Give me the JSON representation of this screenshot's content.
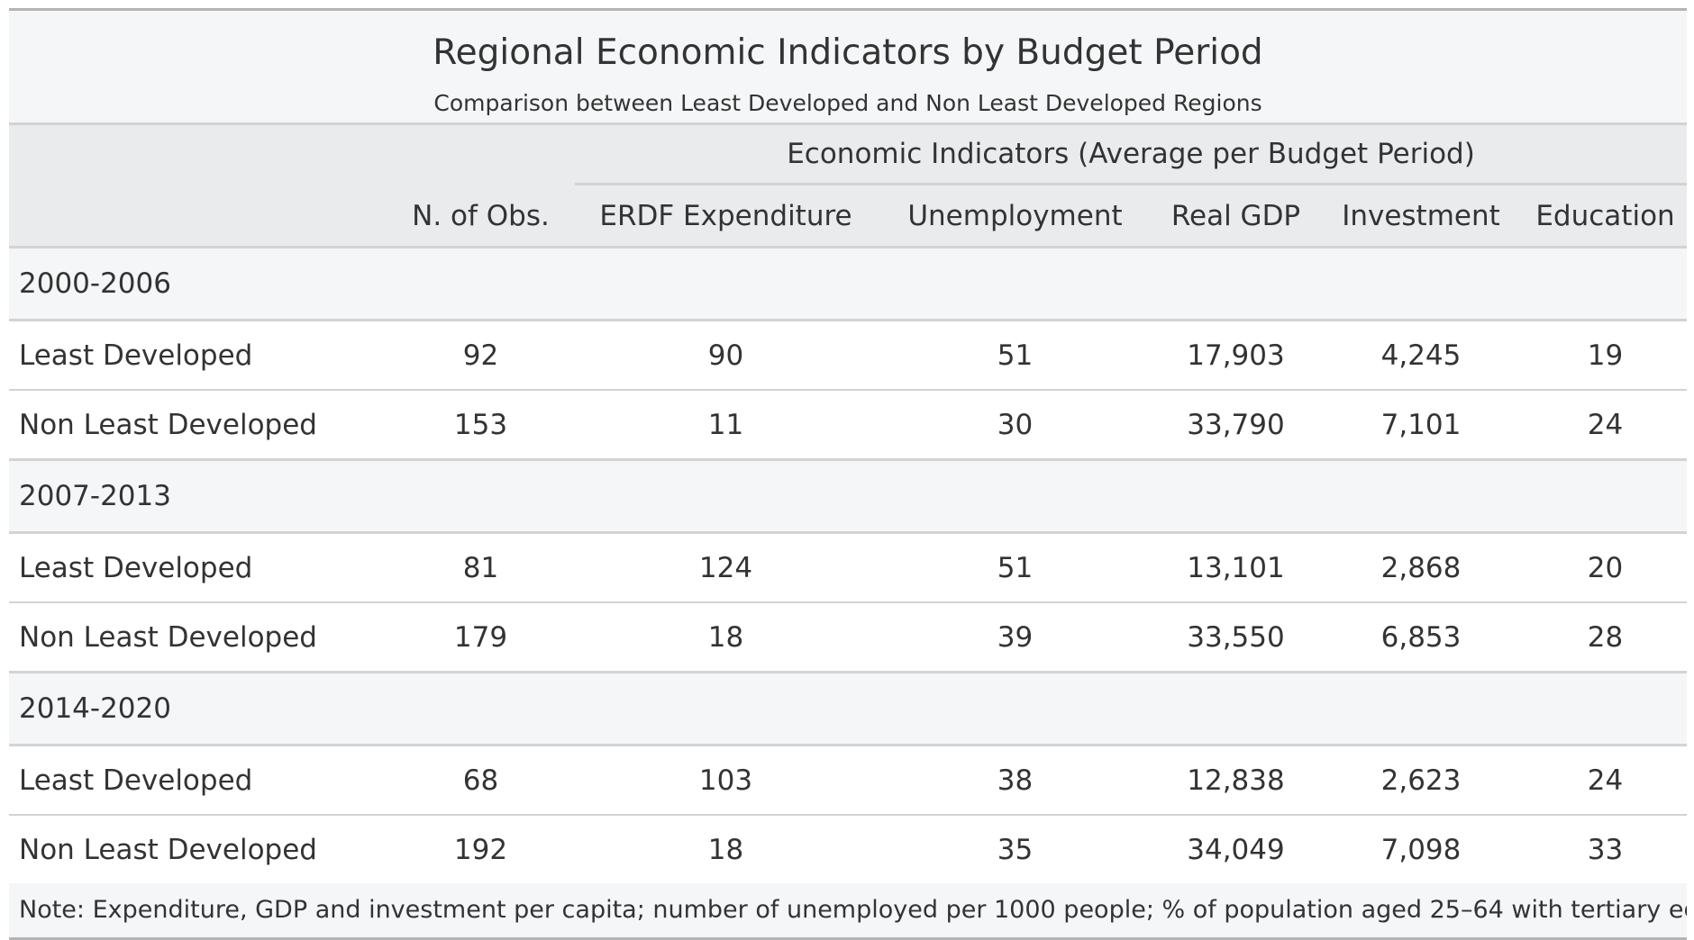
{
  "title": "Regional Economic Indicators by Budget Period",
  "subtitle": "Comparison between Least Developed and Non Least Developed Regions",
  "spanner": "Economic Indicators (Average per Budget Period)",
  "columns": {
    "obs": "N. of Obs.",
    "erdf": "ERDF Expenditure",
    "unemp": "Unemployment",
    "gdp": "Real GDP",
    "inv": "Investment",
    "edu": "Education"
  },
  "groups": [
    {
      "period": "2000-2006",
      "rows": [
        {
          "label": "Least Developed",
          "obs": "92",
          "erdf": "90",
          "unemp": "51",
          "gdp": "17,903",
          "inv": "4,245",
          "edu": "19"
        },
        {
          "label": "Non Least Developed",
          "obs": "153",
          "erdf": "11",
          "unemp": "30",
          "gdp": "33,790",
          "inv": "7,101",
          "edu": "24"
        }
      ]
    },
    {
      "period": "2007-2013",
      "rows": [
        {
          "label": "Least Developed",
          "obs": "81",
          "erdf": "124",
          "unemp": "51",
          "gdp": "13,101",
          "inv": "2,868",
          "edu": "20"
        },
        {
          "label": "Non Least Developed",
          "obs": "179",
          "erdf": "18",
          "unemp": "39",
          "gdp": "33,550",
          "inv": "6,853",
          "edu": "28"
        }
      ]
    },
    {
      "period": "2014-2020",
      "rows": [
        {
          "label": "Least Developed",
          "obs": "68",
          "erdf": "103",
          "unemp": "38",
          "gdp": "12,838",
          "inv": "2,623",
          "edu": "24"
        },
        {
          "label": "Non Least Developed",
          "obs": "192",
          "erdf": "18",
          "unemp": "35",
          "gdp": "34,049",
          "inv": "7,098",
          "edu": "33"
        }
      ]
    }
  ],
  "note": "Note: Expenditure, GDP and investment per capita; number of unemployed per 1000 people; % of population aged 25–64 with tertiary education."
}
